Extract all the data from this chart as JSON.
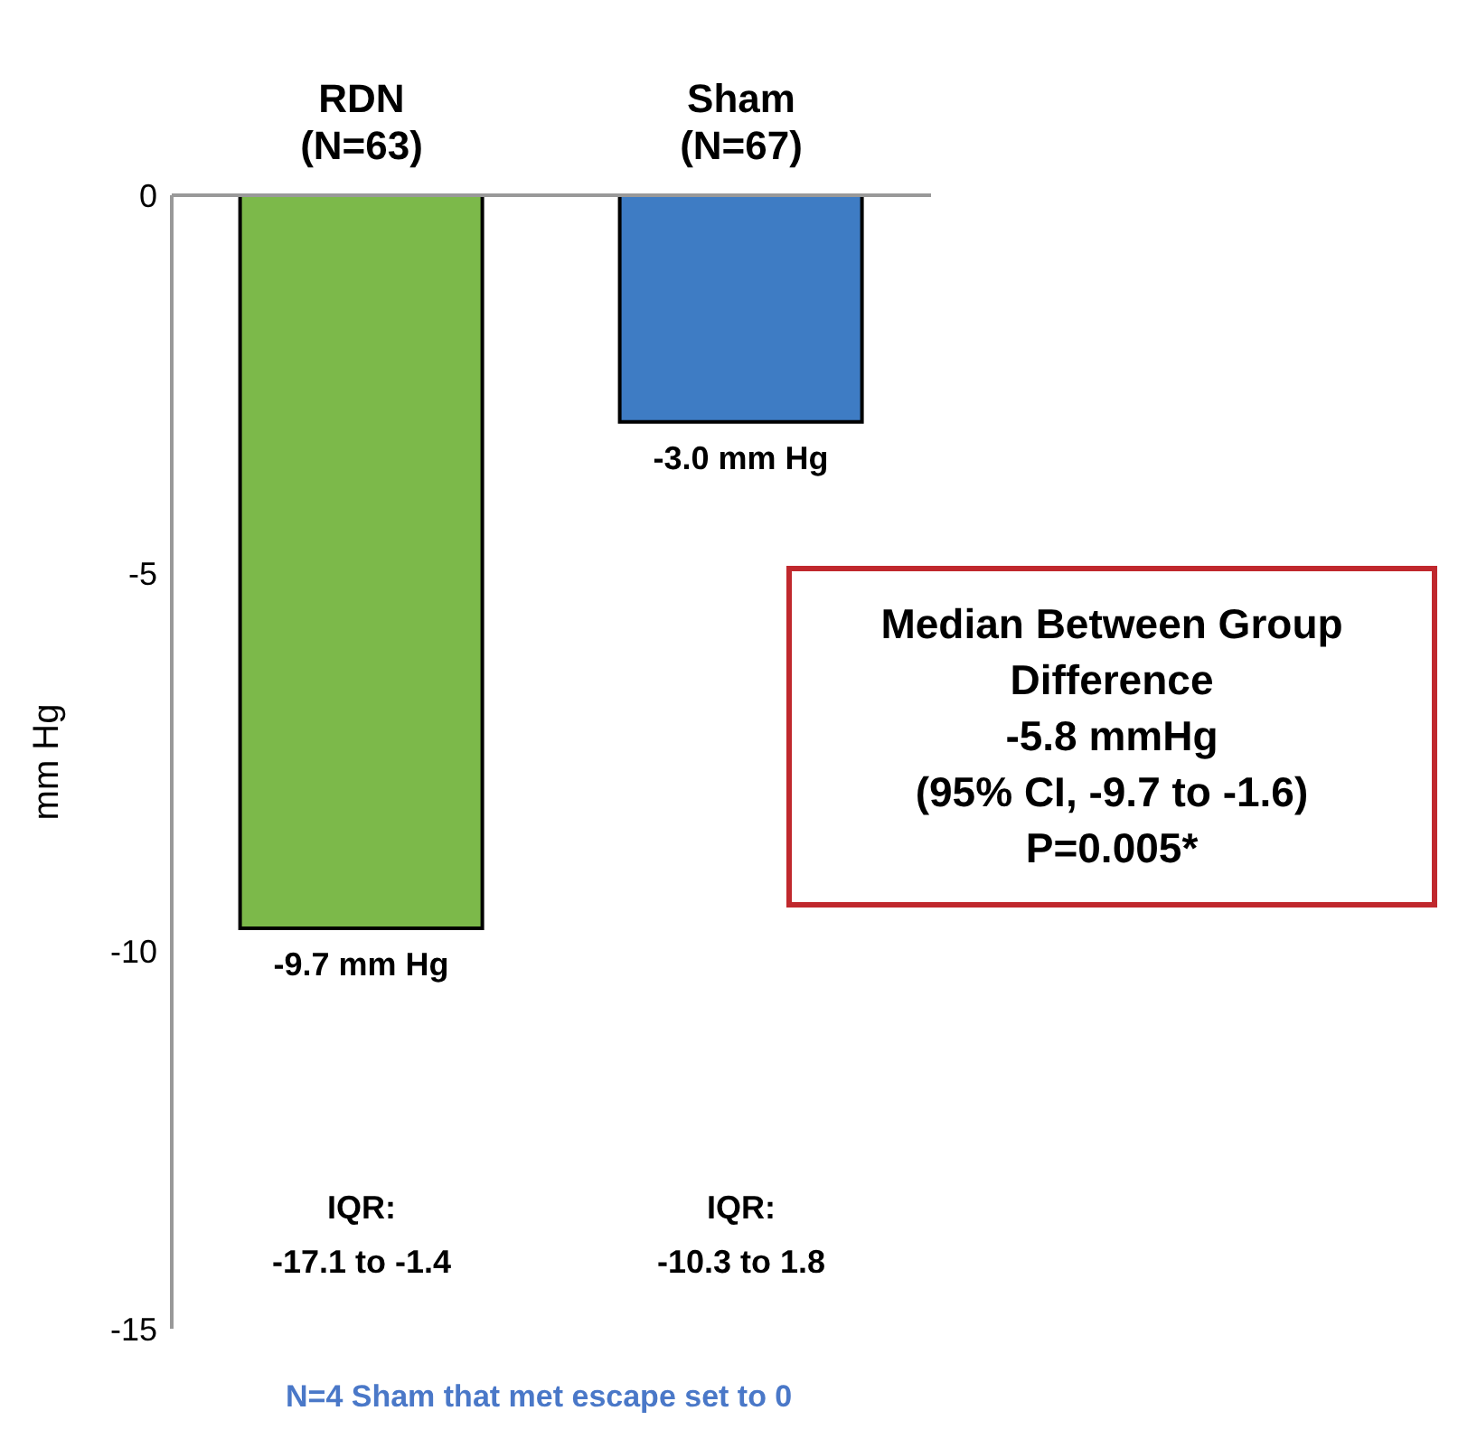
{
  "chart_data": {
    "type": "bar",
    "ylabel": "mm Hg",
    "categories": [
      "RDN\n(N=63)",
      "Sham\n(N=67)"
    ],
    "values": [
      -9.7,
      -3.0
    ],
    "colors": [
      "#7cb94a",
      "#3e7cc4"
    ],
    "value_labels": [
      "-9.7 mm Hg",
      "-3.0 mm Hg"
    ],
    "ylim": [
      -15,
      0
    ],
    "yticks": [
      -15,
      -10,
      -5,
      0
    ],
    "grid": false,
    "legend": false,
    "annotations": [
      "Median Between Group Difference\n-5.8 mmHg\n(95% CI, -9.7 to -1.6)\nP=0.005*",
      "IQR:\n-17.1 to -1.4",
      "IQR:\n-10.3 to 1.8",
      "N=4 Sham that met escape set to 0"
    ]
  }
}
